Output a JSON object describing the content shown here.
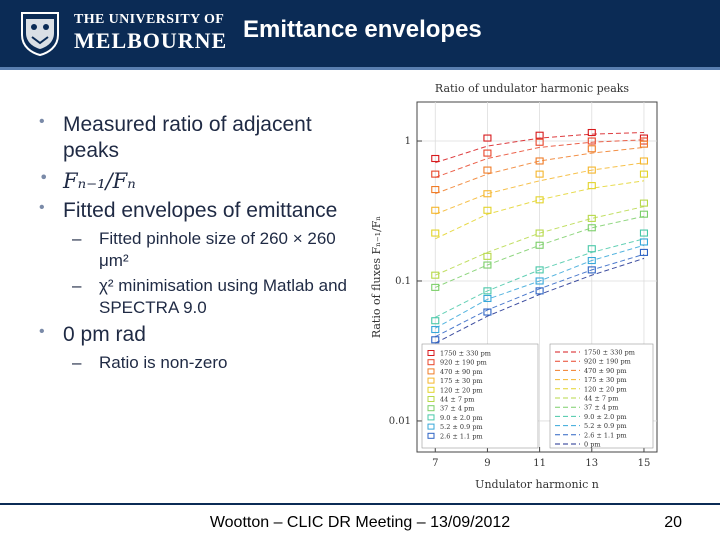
{
  "header": {
    "university_line1": "THE UNIVERSITY OF",
    "university_line2": "MELBOURNE",
    "title": "Emittance envelopes"
  },
  "bullets": [
    {
      "level": 1,
      "text": "Measured ratio of adjacent peaks"
    },
    {
      "level": 1,
      "text": "Fₙ₋₁/Fₙ"
    },
    {
      "level": 1,
      "text": "Fitted envelopes of emittance"
    },
    {
      "level": 2,
      "text": "Fitted pinhole size of 260 × 260 μm²"
    },
    {
      "level": 2,
      "text": "χ² minimisation using Matlab and SPECTRA 9.0"
    },
    {
      "level": 1,
      "text": "0 pm rad"
    },
    {
      "level": 2,
      "text": "Ratio is non-zero"
    }
  ],
  "colors": {
    "header_bg": "#0b2b55",
    "text": "#1f2a44"
  },
  "chart_data": {
    "type": "scatter",
    "title": "Ratio of undulator harmonic peaks",
    "xlabel": "Undulator harmonic n",
    "ylabel": "Ratio of fluxes Fₙ₋₁/Fₙ",
    "x_ticks": [
      "7",
      "9",
      "11",
      "13",
      "15"
    ],
    "y_ticks": [
      "1",
      "0.1",
      "0.01"
    ],
    "y_scale": "log",
    "xlim": [
      6.3,
      15.5
    ],
    "ylim": [
      0.006,
      1.9
    ],
    "x": [
      7,
      9,
      11,
      13,
      15
    ],
    "legend_position": "bottom-right",
    "series": [
      {
        "name": "1750 ± 330 pm",
        "color": "#d7191c",
        "values": [
          0.75,
          1.05,
          1.1,
          1.15,
          1.05
        ],
        "fit": [
          0.7,
          0.92,
          1.05,
          1.12,
          1.15
        ]
      },
      {
        "name": "920 ± 190 pm",
        "color": "#e8452a",
        "values": [
          0.58,
          0.82,
          0.98,
          1.0,
          1.0
        ],
        "fit": [
          0.55,
          0.75,
          0.9,
          0.98,
          1.02
        ]
      },
      {
        "name": "470 ± 90 pm",
        "color": "#f07c27",
        "values": [
          0.45,
          0.62,
          0.72,
          0.88,
          0.95
        ],
        "fit": [
          0.42,
          0.58,
          0.72,
          0.82,
          0.9
        ]
      },
      {
        "name": "175 ± 30 pm",
        "color": "#f5b62c",
        "values": [
          0.32,
          0.42,
          0.58,
          0.62,
          0.72
        ],
        "fit": [
          0.3,
          0.42,
          0.52,
          0.62,
          0.7
        ]
      },
      {
        "name": "120 ± 20 pm",
        "color": "#e3d42a",
        "values": [
          0.22,
          0.32,
          0.38,
          0.48,
          0.58
        ],
        "fit": [
          0.2,
          0.3,
          0.38,
          0.46,
          0.52
        ]
      },
      {
        "name": "44 ± 7 pm",
        "color": "#b7d94a",
        "values": [
          0.11,
          0.15,
          0.22,
          0.28,
          0.36
        ],
        "fit": [
          0.11,
          0.16,
          0.22,
          0.28,
          0.34
        ]
      },
      {
        "name": "37 ± 4 pm",
        "color": "#7ccf6a",
        "values": [
          0.09,
          0.13,
          0.18,
          0.24,
          0.3
        ],
        "fit": [
          0.09,
          0.13,
          0.18,
          0.24,
          0.29
        ]
      },
      {
        "name": "9.0 ± 2.0 pm",
        "color": "#48c8a8",
        "values": [
          0.052,
          0.085,
          0.12,
          0.17,
          0.22
        ],
        "fit": [
          0.055,
          0.085,
          0.12,
          0.16,
          0.2
        ]
      },
      {
        "name": "5.2 ± 0.9 pm",
        "color": "#36a7d9",
        "values": [
          0.045,
          0.075,
          0.1,
          0.14,
          0.19
        ],
        "fit": [
          0.046,
          0.074,
          0.1,
          0.14,
          0.18
        ]
      },
      {
        "name": "2.6 ± 1.1 pm",
        "color": "#2d63c4",
        "values": [
          0.038,
          0.06,
          0.085,
          0.12,
          0.16
        ],
        "fit": [
          0.04,
          0.062,
          0.088,
          0.12,
          0.155
        ]
      },
      {
        "name": "0 pm",
        "color": "#1c2f8f",
        "values": [],
        "fit": [
          0.036,
          0.056,
          0.08,
          0.11,
          0.145
        ]
      }
    ]
  },
  "footer": {
    "text": "Wootton – CLIC DR Meeting – 13/09/2012",
    "page": "20"
  }
}
